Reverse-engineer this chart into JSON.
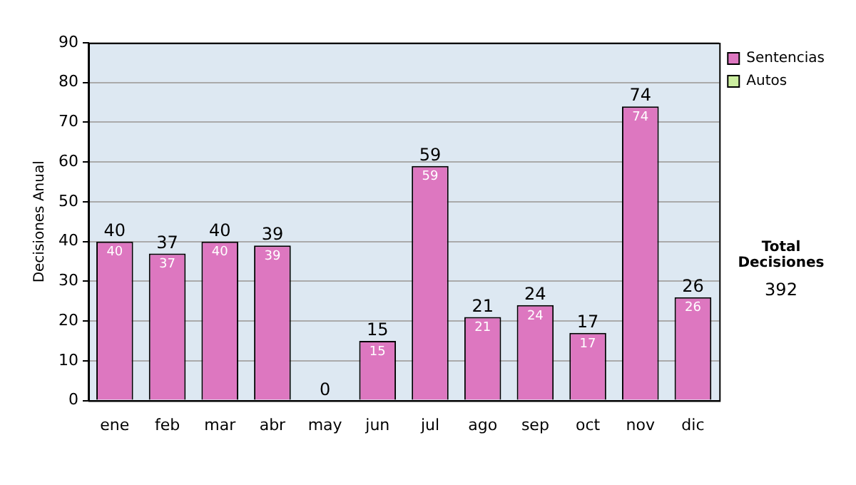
{
  "chart_data": {
    "type": "bar",
    "ylabel": "Decisiones Anual",
    "categories": [
      "ene",
      "feb",
      "mar",
      "abr",
      "may",
      "jun",
      "jul",
      "ago",
      "sep",
      "oct",
      "nov",
      "dic"
    ],
    "series": [
      {
        "name": "Sentencias",
        "color": "#dd77c0",
        "values": [
          40,
          37,
          40,
          39,
          0,
          15,
          59,
          21,
          24,
          17,
          74,
          26
        ],
        "value_labels": [
          "40",
          "37",
          "40",
          "39",
          null,
          "15",
          "59",
          "21",
          "24",
          "17",
          "74",
          "26"
        ]
      },
      {
        "name": "Autos",
        "color": "#cceea0",
        "values": [
          0,
          0,
          0,
          0,
          0,
          0,
          0,
          0,
          0,
          0,
          0,
          0
        ]
      }
    ],
    "stacked": true,
    "totals": [
      "40",
      "37",
      "40",
      "39",
      "0",
      "15",
      "59",
      "21",
      "24",
      "17",
      "74",
      "26"
    ],
    "ylim": [
      0,
      90
    ],
    "yticks": [
      0,
      10,
      20,
      30,
      40,
      50,
      60,
      70,
      80,
      90
    ],
    "grid": "y",
    "legend": "right",
    "annotations": [
      "Total Decisiones",
      "392"
    ]
  }
}
